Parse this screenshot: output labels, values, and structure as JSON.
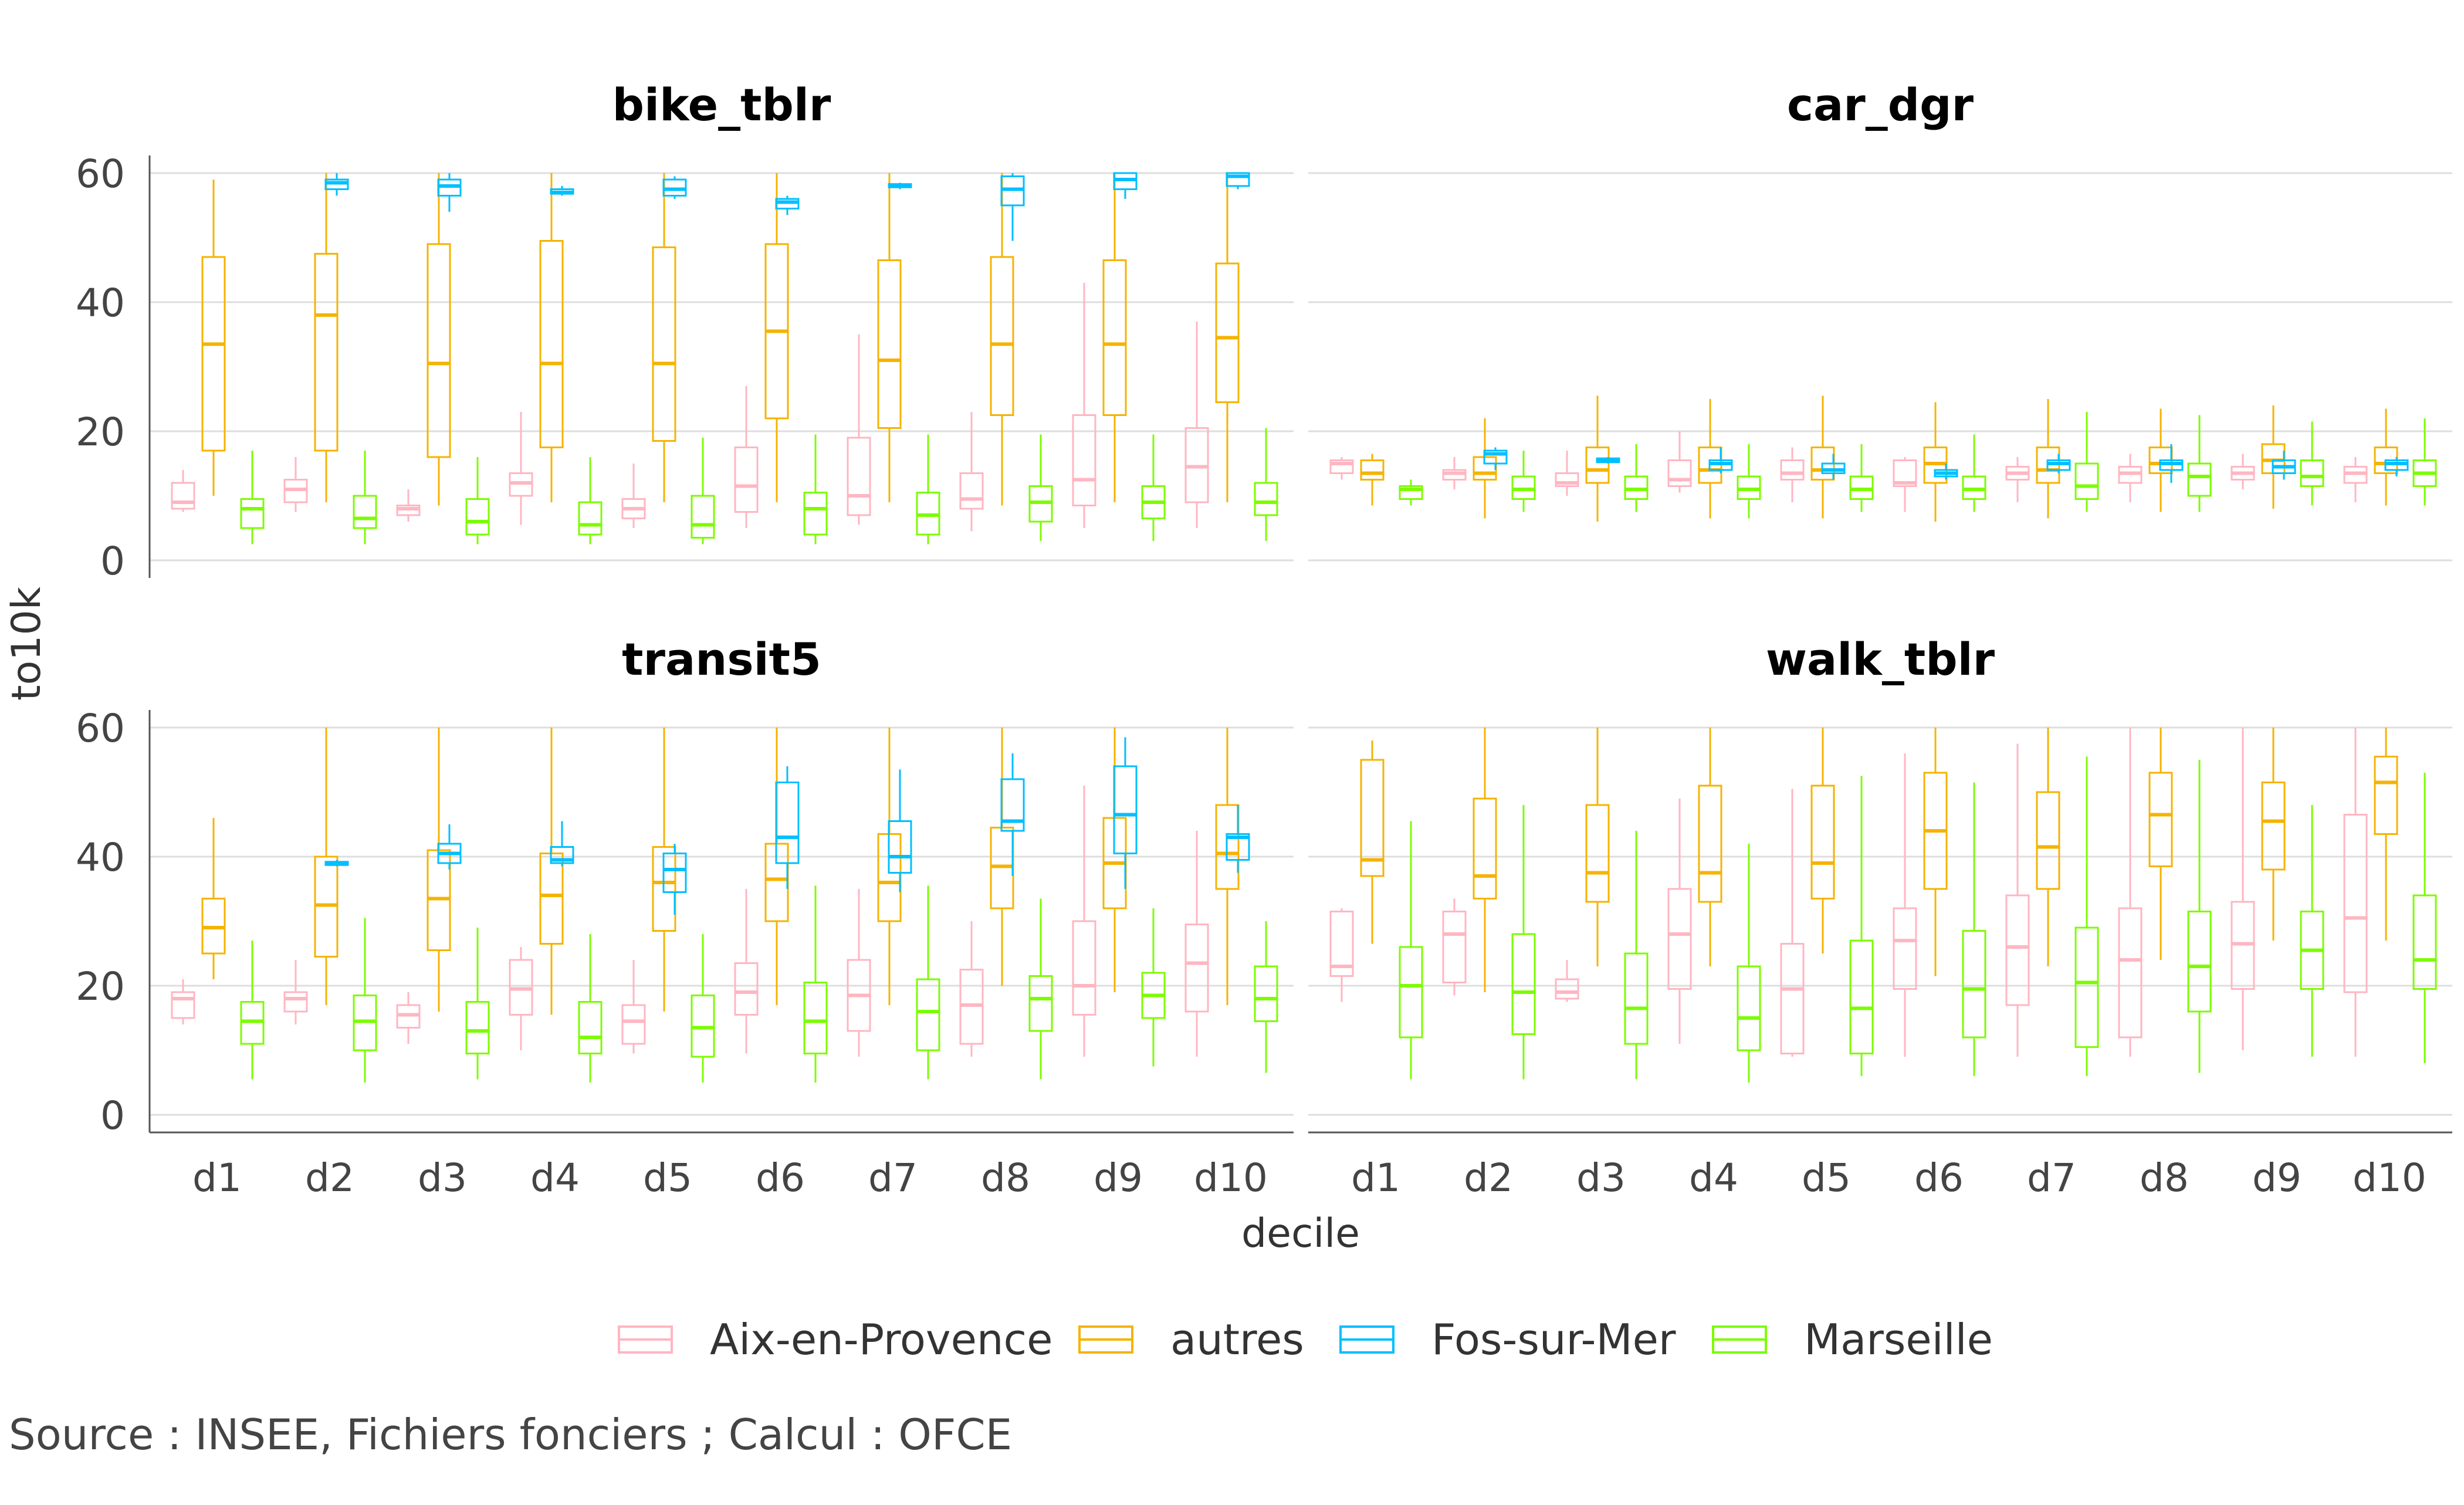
{
  "chart_data": {
    "type": "boxplot",
    "facets": [
      "bike_tblr",
      "car_dgr",
      "transit5",
      "walk_tblr"
    ],
    "categories": [
      "d1",
      "d2",
      "d3",
      "d4",
      "d5",
      "d6",
      "d7",
      "d8",
      "d9",
      "d10"
    ],
    "xlabel": "decile",
    "ylabel": "to10k",
    "ylim": [
      0,
      60
    ],
    "yticks": [
      0,
      20,
      40,
      60
    ],
    "grid": true,
    "legend_position": "bottom",
    "caption": "Source : INSEE, Fichiers fonciers ; Calcul : OFCE",
    "series": [
      {
        "name": "Aix-en-Provence",
        "color": "#FFB6C1"
      },
      {
        "name": "autres",
        "color": "#F5B301"
      },
      {
        "name": "Fos-sur-Mer",
        "color": "#00BFFF"
      },
      {
        "name": "Marseille",
        "color": "#7CFC00"
      }
    ],
    "panels": {
      "bike_tblr": {
        "Aix-en-Provence": [
          [
            7.5,
            8,
            9,
            12,
            14
          ],
          [
            7.5,
            9,
            11,
            12.5,
            16
          ],
          [
            6,
            7,
            8,
            8.5,
            11
          ],
          [
            5.5,
            10,
            12,
            13.5,
            23
          ],
          [
            5,
            6.5,
            8,
            9.5,
            15
          ],
          [
            5,
            7.5,
            11.5,
            17.5,
            27
          ],
          [
            5.5,
            7,
            10,
            19,
            35
          ],
          [
            4.5,
            8,
            9.5,
            13.5,
            23
          ],
          [
            5,
            8.5,
            12.5,
            22.5,
            43
          ],
          [
            5,
            9,
            14.5,
            20.5,
            37
          ]
        ],
        "autres": [
          [
            10,
            17,
            33.5,
            47,
            59
          ],
          [
            9,
            17,
            38,
            47.5,
            60
          ],
          [
            8.5,
            16,
            30.5,
            49,
            60
          ],
          [
            9,
            17.5,
            30.5,
            49.5,
            60
          ],
          [
            9,
            18.5,
            30.5,
            48.5,
            60
          ],
          [
            9,
            22,
            35.5,
            49,
            60
          ],
          [
            9,
            20.5,
            31,
            46.5,
            60
          ],
          [
            8.5,
            22.5,
            33.5,
            47,
            60
          ],
          [
            9,
            22.5,
            33.5,
            46.5,
            60
          ],
          [
            9,
            24.5,
            34.5,
            46,
            60
          ]
        ],
        "Fos-sur-Mer": [
          [
            null,
            null,
            null,
            null,
            null
          ],
          [
            56.5,
            57.5,
            58.5,
            59,
            60
          ],
          [
            54,
            56.5,
            58,
            59,
            60
          ],
          [
            56.5,
            56.8,
            57,
            57.5,
            58
          ],
          [
            56,
            56.5,
            57.5,
            59,
            59.5
          ],
          [
            53.5,
            54.5,
            55.5,
            56,
            56.5
          ],
          [
            57.5,
            57.8,
            58,
            58.3,
            58.5
          ],
          [
            49.5,
            55,
            57.5,
            59.5,
            60
          ],
          [
            56,
            57.5,
            59,
            60,
            60
          ],
          [
            57.5,
            58,
            59.5,
            60,
            60
          ]
        ],
        "Marseille": [
          [
            2.5,
            5,
            8,
            9.5,
            17
          ],
          [
            2.5,
            5,
            6.5,
            10,
            17
          ],
          [
            2.5,
            4,
            6,
            9.5,
            16
          ],
          [
            2.5,
            4,
            5.5,
            9,
            16
          ],
          [
            2.5,
            3.5,
            5.5,
            10,
            19
          ],
          [
            2.5,
            4,
            8,
            10.5,
            19.5
          ],
          [
            2.5,
            4,
            7,
            10.5,
            19.5
          ],
          [
            3,
            6,
            9,
            11.5,
            19.5
          ],
          [
            3,
            6.5,
            9,
            11.5,
            19.5
          ],
          [
            3,
            7,
            9,
            12,
            20.5
          ]
        ]
      },
      "car_dgr": {
        "Aix-en-Provence": [
          [
            12.5,
            13.5,
            15,
            15.5,
            16
          ],
          [
            11,
            12.5,
            13.5,
            14,
            16
          ],
          [
            10,
            11.5,
            12,
            13.5,
            17
          ],
          [
            10.5,
            11.5,
            12.5,
            15.5,
            20
          ],
          [
            9,
            12.5,
            13.5,
            15.5,
            17.5
          ],
          [
            7.5,
            11.5,
            12,
            15.5,
            16
          ],
          [
            9,
            12.5,
            13.5,
            14.5,
            16
          ],
          [
            9,
            12,
            13.5,
            14.5,
            16.5
          ],
          [
            11,
            12.5,
            13.5,
            14.5,
            16.5
          ],
          [
            9,
            12,
            13.5,
            14.5,
            16
          ]
        ],
        "autres": [
          [
            8.5,
            12.5,
            13.5,
            15.5,
            16.5
          ],
          [
            6.5,
            12.5,
            13.5,
            16,
            22
          ],
          [
            6,
            12,
            14,
            17.5,
            25.5
          ],
          [
            6.5,
            12,
            14,
            17.5,
            25
          ],
          [
            6.5,
            12.5,
            14,
            17.5,
            25.5
          ],
          [
            6,
            12,
            15,
            17.5,
            24.5
          ],
          [
            6.5,
            12,
            14,
            17.5,
            25
          ],
          [
            7.5,
            13.5,
            15,
            17.5,
            23.5
          ],
          [
            8,
            13.5,
            15.5,
            18,
            24
          ],
          [
            8.5,
            13.5,
            15,
            17.5,
            23.5
          ]
        ],
        "Fos-sur-Mer": [
          [
            null,
            null,
            null,
            null,
            null
          ],
          [
            14,
            15,
            16.5,
            17,
            17.5
          ],
          [
            15,
            15.2,
            15.5,
            15.8,
            16
          ],
          [
            13.5,
            14,
            15,
            15.5,
            17.5
          ],
          [
            12.5,
            13.5,
            14,
            15,
            16.5
          ],
          [
            12.5,
            13,
            13.5,
            14,
            15
          ],
          [
            13.5,
            14,
            15,
            15.5,
            16.5
          ],
          [
            12,
            14,
            15,
            15.5,
            18
          ],
          [
            12.5,
            13.5,
            14.5,
            15.5,
            17
          ],
          [
            13,
            14,
            15,
            15.5,
            16
          ]
        ],
        "Marseille": [
          [
            8.5,
            9.5,
            11,
            11.5,
            12.5
          ],
          [
            7.5,
            9.5,
            11,
            13,
            17
          ],
          [
            7.5,
            9.5,
            11,
            13,
            18
          ],
          [
            6.5,
            9.5,
            11,
            13,
            18
          ],
          [
            7.5,
            9.5,
            11,
            13,
            18
          ],
          [
            7.5,
            9.5,
            11,
            13,
            19.5
          ],
          [
            7.5,
            9.5,
            11.5,
            15,
            23
          ],
          [
            7.5,
            10,
            13,
            15,
            22.5
          ],
          [
            8.5,
            11.5,
            13,
            15.5,
            21.5
          ],
          [
            8.5,
            11.5,
            13.5,
            15.5,
            22
          ]
        ]
      },
      "transit5": {
        "Aix-en-Provence": [
          [
            14,
            15,
            18,
            19,
            21
          ],
          [
            14,
            16,
            18,
            19,
            24
          ],
          [
            11,
            13.5,
            15.5,
            17,
            19
          ],
          [
            10,
            15.5,
            19.5,
            24,
            26
          ],
          [
            9.5,
            11,
            14.5,
            17,
            24
          ],
          [
            9.5,
            15.5,
            19,
            23.5,
            35
          ],
          [
            9,
            13,
            18.5,
            24,
            35
          ],
          [
            9,
            11,
            17,
            22.5,
            30
          ],
          [
            9,
            15.5,
            20,
            30,
            51
          ],
          [
            9,
            16,
            23.5,
            29.5,
            44
          ]
        ],
        "autres": [
          [
            21,
            25,
            29,
            33.5,
            46
          ],
          [
            17,
            24.5,
            32.5,
            40,
            60
          ],
          [
            16,
            25.5,
            33.5,
            41,
            60
          ],
          [
            15.5,
            26.5,
            34,
            40.5,
            60
          ],
          [
            16,
            28.5,
            36,
            41.5,
            60
          ],
          [
            17,
            30,
            36.5,
            42,
            60
          ],
          [
            17,
            30,
            36,
            43.5,
            60
          ],
          [
            20,
            32,
            38.5,
            44.5,
            60
          ],
          [
            19,
            32,
            39,
            46,
            60
          ],
          [
            17,
            35,
            40.5,
            48,
            60
          ]
        ],
        "Fos-sur-Mer": [
          [
            null,
            null,
            null,
            null,
            null
          ],
          [
            38.5,
            38.7,
            39,
            39.2,
            39.5
          ],
          [
            38,
            39,
            40.5,
            42,
            45
          ],
          [
            38.5,
            39,
            39.5,
            41.5,
            45.5
          ],
          [
            31,
            34.5,
            38,
            40.5,
            42
          ],
          [
            35,
            39,
            43,
            51.5,
            54
          ],
          [
            34.5,
            37.5,
            40,
            45.5,
            53.5
          ],
          [
            37,
            44,
            45.5,
            52,
            56
          ],
          [
            35,
            40.5,
            46.5,
            54,
            58.5
          ],
          [
            37.5,
            39.5,
            43,
            43.5,
            48
          ]
        ],
        "Marseille": [
          [
            5.5,
            11,
            14.5,
            17.5,
            27
          ],
          [
            5,
            10,
            14.5,
            18.5,
            30.5
          ],
          [
            5.5,
            9.5,
            13,
            17.5,
            29
          ],
          [
            5,
            9.5,
            12,
            17.5,
            28
          ],
          [
            5,
            9,
            13.5,
            18.5,
            28
          ],
          [
            5,
            9.5,
            14.5,
            20.5,
            35.5
          ],
          [
            5.5,
            10,
            16,
            21,
            35.5
          ],
          [
            5.5,
            13,
            18,
            21.5,
            33.5
          ],
          [
            7.5,
            15,
            18.5,
            22,
            32
          ],
          [
            6.5,
            14.5,
            18,
            23,
            30
          ]
        ]
      },
      "walk_tblr": {
        "Aix-en-Provence": [
          [
            17.5,
            21.5,
            23,
            31.5,
            32
          ],
          [
            18.5,
            20.5,
            28,
            31.5,
            33.5
          ],
          [
            17.5,
            18,
            19,
            21,
            24
          ],
          [
            11,
            19.5,
            28,
            35,
            49
          ],
          [
            9,
            9.5,
            19.5,
            26.5,
            50.5
          ],
          [
            9,
            19.5,
            27,
            32,
            56
          ],
          [
            9,
            17,
            26,
            34,
            57.5
          ],
          [
            9,
            12,
            24,
            32,
            60
          ],
          [
            10,
            19.5,
            26.5,
            33,
            60
          ],
          [
            9,
            19,
            30.5,
            46.5,
            60
          ]
        ],
        "autres": [
          [
            26.5,
            37,
            39.5,
            55,
            58
          ],
          [
            19,
            33.5,
            37,
            49,
            60
          ],
          [
            23,
            33,
            37.5,
            48,
            60
          ],
          [
            23,
            33,
            37.5,
            51,
            60
          ],
          [
            25,
            33.5,
            39,
            51,
            60
          ],
          [
            21.5,
            35,
            44,
            53,
            60
          ],
          [
            23,
            35,
            41.5,
            50,
            60
          ],
          [
            24,
            38.5,
            46.5,
            53,
            60
          ],
          [
            27,
            38,
            45.5,
            51.5,
            60
          ],
          [
            27,
            43.5,
            51.5,
            55.5,
            60
          ]
        ],
        "Fos-sur-Mer": [
          [
            null,
            null,
            null,
            null,
            null
          ],
          [
            null,
            null,
            null,
            null,
            null
          ],
          [
            null,
            null,
            null,
            null,
            null
          ],
          [
            null,
            null,
            null,
            null,
            null
          ],
          [
            null,
            null,
            null,
            null,
            null
          ],
          [
            null,
            null,
            null,
            null,
            null
          ],
          [
            null,
            null,
            null,
            null,
            null
          ],
          [
            null,
            null,
            null,
            null,
            null
          ],
          [
            null,
            null,
            null,
            null,
            null
          ],
          [
            null,
            null,
            null,
            null,
            null
          ]
        ],
        "Marseille": [
          [
            5.5,
            12,
            20,
            26,
            45.5
          ],
          [
            5.5,
            12.5,
            19,
            28,
            48
          ],
          [
            5.5,
            11,
            16.5,
            25,
            44
          ],
          [
            5,
            10,
            15,
            23,
            42
          ],
          [
            6,
            9.5,
            16.5,
            27,
            52.5
          ],
          [
            6,
            12,
            19.5,
            28.5,
            51.5
          ],
          [
            6,
            10.5,
            20.5,
            29,
            55.5
          ],
          [
            6.5,
            16,
            23,
            31.5,
            55
          ],
          [
            9,
            19.5,
            25.5,
            31.5,
            48
          ],
          [
            8,
            19.5,
            24,
            34,
            53
          ]
        ]
      }
    }
  }
}
